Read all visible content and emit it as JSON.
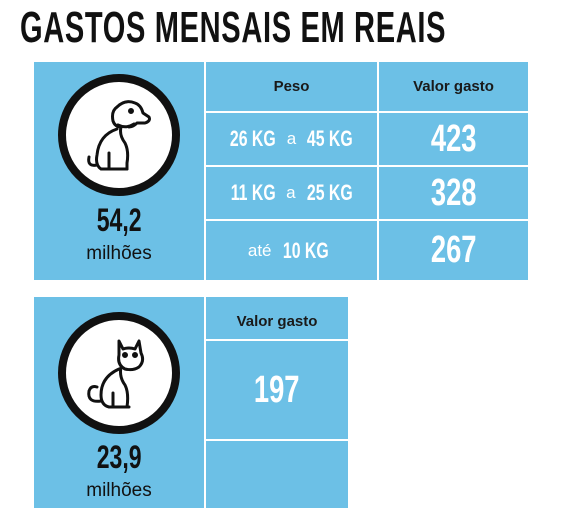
{
  "title": "GASTOS MENSAIS EM REAIS",
  "dog": {
    "count": "54,2",
    "unit": "milhões",
    "headers": [
      "Peso",
      "Valor gasto"
    ],
    "rows": [
      {
        "from": "26 KG",
        "sep": "a",
        "to": "45 KG",
        "value": 423
      },
      {
        "from": "11 KG",
        "sep": "a",
        "to": "25 KG",
        "value": 328
      },
      {
        "sep": "até",
        "to": "10 KG",
        "value": 267
      }
    ]
  },
  "cat": {
    "count": "23,9",
    "unit": "milhões",
    "headers": [
      "Valor gasto"
    ],
    "rows": [
      {
        "value": 197
      }
    ]
  }
}
